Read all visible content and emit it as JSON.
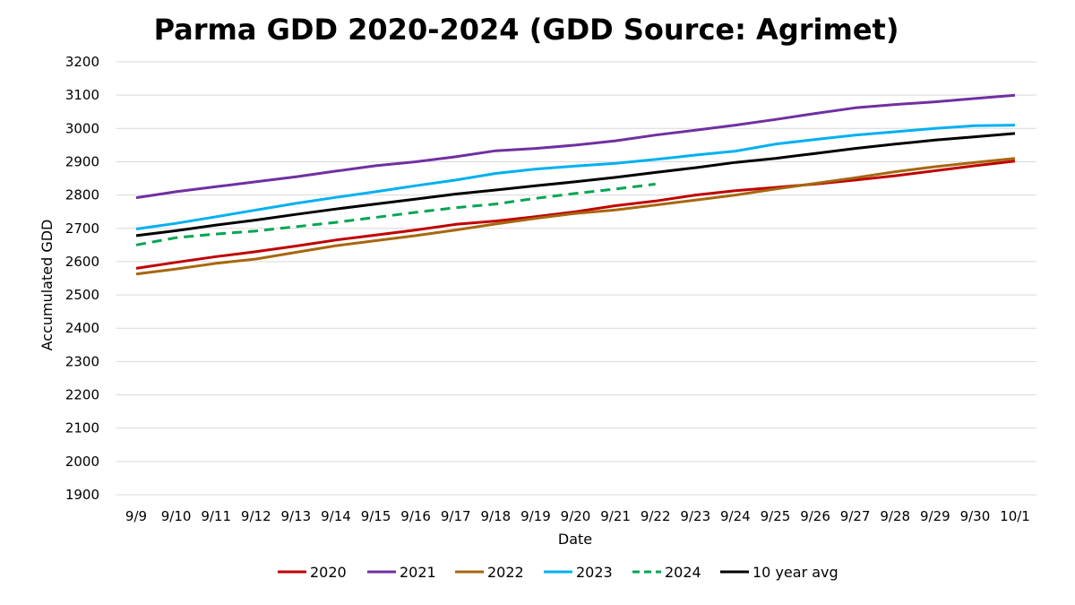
{
  "chart_data": {
    "type": "line",
    "title": "Parma GDD 2020-2024 (GDD Source: Agrimet)",
    "xlabel": "Date",
    "ylabel": "Accumulated GDD",
    "ylim": [
      1900,
      3200
    ],
    "yticks": [
      1900,
      2000,
      2100,
      2200,
      2300,
      2400,
      2500,
      2600,
      2700,
      2800,
      2900,
      3000,
      3100,
      3200
    ],
    "grid": true,
    "legend_position": "bottom",
    "categories": [
      "9/9",
      "9/10",
      "9/11",
      "9/12",
      "9/13",
      "9/14",
      "9/15",
      "9/16",
      "9/17",
      "9/18",
      "9/19",
      "9/20",
      "9/21",
      "9/22",
      "9/23",
      "9/24",
      "9/25",
      "9/26",
      "9/27",
      "9/28",
      "9/29",
      "9/30",
      "10/1"
    ],
    "series": [
      {
        "name": "2020",
        "color": "#C00000",
        "dash": false,
        "values": [
          2580,
          2598,
          2615,
          2630,
          2647,
          2665,
          2680,
          2695,
          2712,
          2722,
          2735,
          2750,
          2768,
          2782,
          2800,
          2813,
          2823,
          2833,
          2845,
          2858,
          2873,
          2888,
          2902
        ]
      },
      {
        "name": "2021",
        "color": "#7030A0",
        "dash": false,
        "values": [
          2792,
          2810,
          2825,
          2840,
          2855,
          2872,
          2888,
          2900,
          2915,
          2933,
          2940,
          2950,
          2963,
          2980,
          2995,
          3010,
          3027,
          3045,
          3062,
          3072,
          3080,
          3090,
          3100
        ]
      },
      {
        "name": "2022",
        "color": "#A6670F",
        "dash": false,
        "values": [
          2563,
          2578,
          2595,
          2608,
          2628,
          2648,
          2663,
          2678,
          2695,
          2713,
          2730,
          2745,
          2755,
          2770,
          2785,
          2800,
          2818,
          2835,
          2852,
          2870,
          2885,
          2898,
          2910
        ]
      },
      {
        "name": "2023",
        "color": "#00B0F0",
        "dash": false,
        "values": [
          2698,
          2715,
          2735,
          2755,
          2775,
          2793,
          2810,
          2828,
          2845,
          2865,
          2878,
          2887,
          2895,
          2907,
          2920,
          2932,
          2953,
          2967,
          2980,
          2990,
          3000,
          3008,
          3010
        ]
      },
      {
        "name": "2024",
        "color": "#00A651",
        "dash": true,
        "values": [
          2650,
          2672,
          2683,
          2692,
          2705,
          2718,
          2733,
          2748,
          2762,
          2773,
          2790,
          2805,
          2818,
          2833,
          null,
          null,
          null,
          null,
          null,
          null,
          null,
          null,
          null
        ]
      },
      {
        "name": "10 year avg",
        "color": "#000000",
        "dash": false,
        "values": [
          2678,
          2693,
          2710,
          2725,
          2742,
          2758,
          2773,
          2788,
          2803,
          2815,
          2828,
          2840,
          2853,
          2868,
          2882,
          2898,
          2910,
          2925,
          2940,
          2953,
          2965,
          2975,
          2985
        ]
      }
    ]
  }
}
